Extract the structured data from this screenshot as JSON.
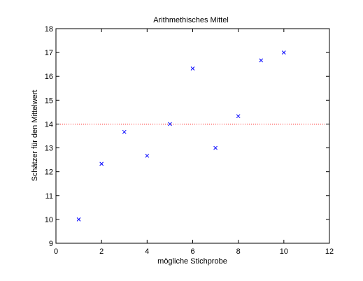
{
  "chart_data": {
    "type": "scatter",
    "title": "Arithmethisches Mittel",
    "xlabel": "mögliche Stichprobe",
    "ylabel": "Schätzer für den Mittelwert",
    "xlim": [
      0,
      12
    ],
    "ylim": [
      9,
      18
    ],
    "xticks": [
      "0",
      "2",
      "4",
      "6",
      "8",
      "10",
      "12"
    ],
    "yticks": [
      "9",
      "10",
      "11",
      "12",
      "13",
      "14",
      "15",
      "16",
      "17",
      "18"
    ],
    "grid": false,
    "marker": "x",
    "marker_color": "#0000ff",
    "reference_line_color": "#ff0000",
    "series": [
      {
        "x": [
          1,
          2,
          3,
          4,
          5,
          6,
          7,
          8,
          9,
          10
        ],
        "y": [
          10,
          12.33,
          13.67,
          12.67,
          14,
          16.33,
          13,
          14.33,
          16.67,
          17
        ]
      }
    ],
    "reference_line": {
      "y": 14,
      "style": "dotted"
    }
  }
}
